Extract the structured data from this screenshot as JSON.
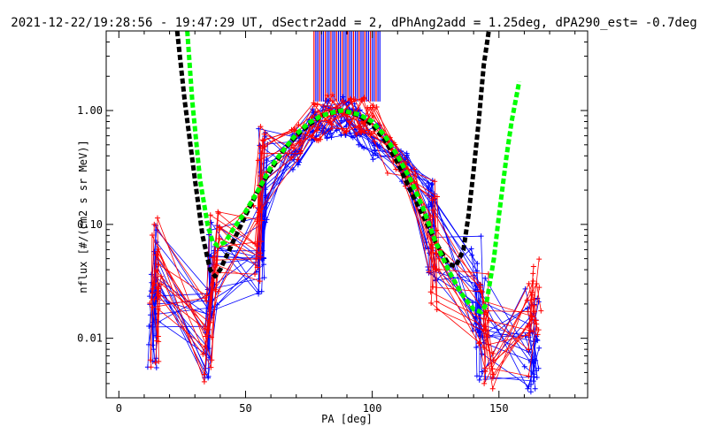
{
  "chart_data": {
    "type": "line",
    "title": "2021-12-22/19:28:56 - 19:47:29 UT, dSectr2add = 2, dPhAng2add = 1.25deg, dPA290_est=  -0.7deg",
    "xlabel": "PA [deg]",
    "ylabel": "nflux [#/(cm2 s sr MeV)]",
    "x_scale": "linear",
    "y_scale": "log",
    "xlim": [
      -5,
      185
    ],
    "ylim": [
      0.003,
      5.0
    ],
    "x_ticks": [
      0,
      50,
      100,
      150
    ],
    "x_tick_labels": [
      "0",
      "50",
      "100",
      "150"
    ],
    "y_ticks": [
      0.01,
      0.1,
      1.0
    ],
    "y_tick_labels": [
      "0.01",
      "0.10",
      "1.00"
    ],
    "grid": false,
    "legend": "none",
    "colors": {
      "blue": "#0000ff",
      "red": "#ff0000",
      "black": "#000000",
      "green": "#00ff00"
    },
    "series": [
      {
        "color": "blue",
        "style": "thin lines with + markers (many samples, blue)",
        "x": [
          13,
          14,
          35,
          37,
          56,
          57,
          70,
          77,
          82,
          88,
          92,
          96,
          102,
          112,
          123,
          124,
          141,
          143,
          162,
          164
        ],
        "y": [
          0.012,
          0.035,
          0.012,
          0.04,
          0.06,
          0.25,
          0.45,
          0.7,
          0.85,
          0.9,
          0.85,
          0.7,
          0.5,
          0.3,
          0.1,
          0.08,
          0.03,
          0.012,
          0.01,
          0.008
        ]
      },
      {
        "color": "red",
        "style": "thin lines with + markers (many samples, red)",
        "x": [
          14,
          15,
          35,
          38,
          55,
          57,
          70,
          78,
          84,
          90,
          95,
          100,
          108,
          115,
          124,
          125,
          144,
          146,
          163,
          165
        ],
        "y": [
          0.015,
          0.05,
          0.01,
          0.05,
          0.08,
          0.35,
          0.55,
          0.8,
          0.95,
          0.95,
          0.9,
          0.8,
          0.4,
          0.25,
          0.1,
          0.05,
          0.02,
          0.01,
          0.012,
          0.02
        ]
      },
      {
        "color": "black",
        "style": "thick dashed fit curve",
        "x": [
          23,
          26,
          30,
          33,
          36,
          38,
          40,
          45,
          50,
          55,
          60,
          65,
          70,
          75,
          80,
          85,
          88,
          90,
          95,
          100,
          105,
          110,
          115,
          120,
          125,
          130,
          133,
          136,
          138,
          140,
          142,
          144,
          146
        ],
        "y": [
          5.0,
          1.2,
          0.25,
          0.08,
          0.04,
          0.035,
          0.04,
          0.07,
          0.12,
          0.2,
          0.3,
          0.45,
          0.6,
          0.75,
          0.9,
          0.97,
          1.0,
          0.98,
          0.9,
          0.75,
          0.55,
          0.35,
          0.2,
          0.12,
          0.07,
          0.045,
          0.043,
          0.06,
          0.12,
          0.3,
          0.8,
          2.5,
          5.0
        ]
      },
      {
        "color": "green",
        "style": "thick dashed fit curve",
        "x": [
          27,
          29,
          32,
          35,
          37,
          39,
          42,
          45,
          50,
          55,
          60,
          65,
          70,
          75,
          80,
          85,
          88,
          90,
          95,
          100,
          105,
          110,
          115,
          120,
          125,
          130,
          135,
          140,
          143,
          145,
          148,
          150,
          153,
          155,
          158
        ],
        "y": [
          5.0,
          1.2,
          0.25,
          0.1,
          0.07,
          0.065,
          0.07,
          0.09,
          0.13,
          0.2,
          0.32,
          0.45,
          0.62,
          0.78,
          0.9,
          0.97,
          1.0,
          0.98,
          0.92,
          0.8,
          0.6,
          0.4,
          0.25,
          0.14,
          0.07,
          0.04,
          0.025,
          0.018,
          0.017,
          0.02,
          0.05,
          0.12,
          0.4,
          0.8,
          1.8
        ]
      }
    ],
    "vertical_bars": {
      "color_mix": [
        "blue",
        "red"
      ],
      "x_range": [
        77,
        103
      ],
      "y_top": 5.0,
      "y_bottom": 1.2
    }
  }
}
